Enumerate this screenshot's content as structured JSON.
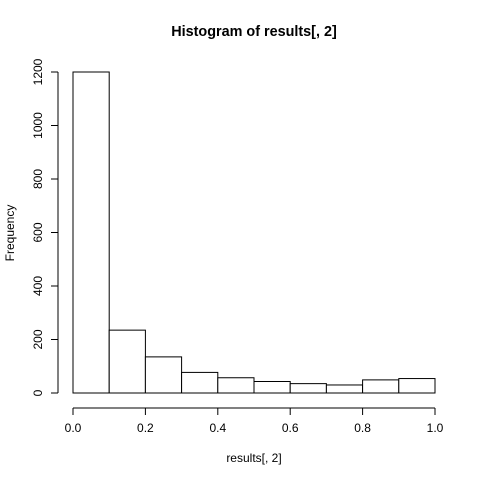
{
  "chart_data": {
    "type": "bar",
    "title": "Histogram of results[, 2]",
    "xlabel": "results[, 2]",
    "ylabel": "Frequency",
    "bins": [
      {
        "from": 0.0,
        "to": 0.1,
        "count": 1200
      },
      {
        "from": 0.1,
        "to": 0.2,
        "count": 235
      },
      {
        "from": 0.2,
        "to": 0.3,
        "count": 135
      },
      {
        "from": 0.3,
        "to": 0.4,
        "count": 77
      },
      {
        "from": 0.4,
        "to": 0.5,
        "count": 57
      },
      {
        "from": 0.5,
        "to": 0.6,
        "count": 43
      },
      {
        "from": 0.6,
        "to": 0.7,
        "count": 35
      },
      {
        "from": 0.7,
        "to": 0.8,
        "count": 30
      },
      {
        "from": 0.8,
        "to": 0.9,
        "count": 49
      },
      {
        "from": 0.9,
        "to": 1.0,
        "count": 54
      }
    ],
    "xlim": [
      0,
      1
    ],
    "ylim": [
      0,
      1200
    ],
    "x_ticks": [
      "0.0",
      "0.2",
      "0.4",
      "0.6",
      "0.8",
      "1.0"
    ],
    "y_ticks": [
      "0",
      "200",
      "400",
      "600",
      "800",
      "1000",
      "1200"
    ],
    "grid": false,
    "legend": "none"
  }
}
